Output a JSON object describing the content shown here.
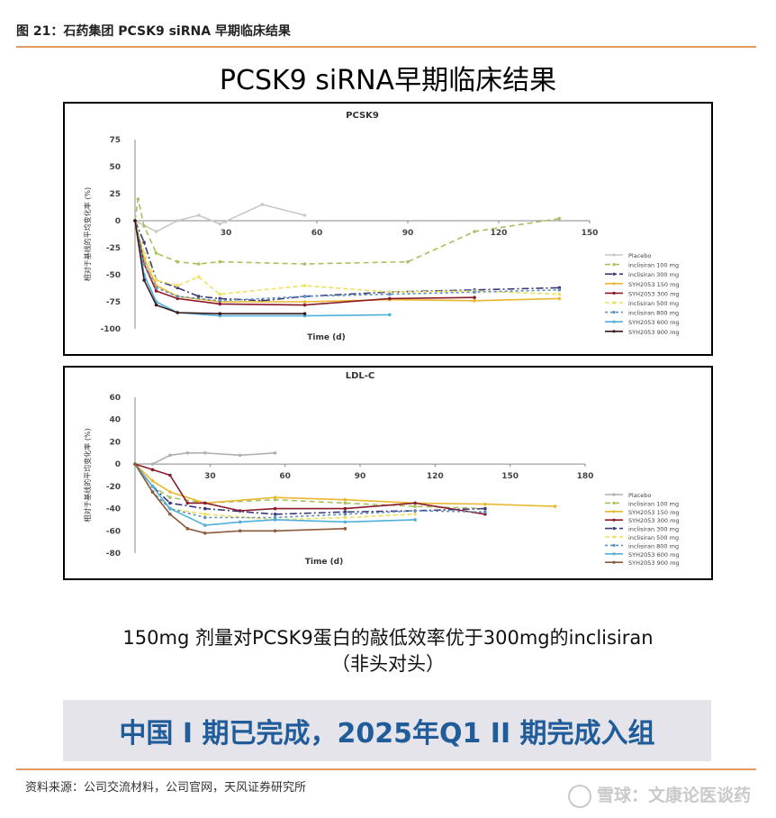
{
  "header": {
    "figure_label": "图 21：石药集团 PCSK9 siRNA 早期临床结果",
    "slide_title": "PCSK9 siRNA早期临床结果"
  },
  "chart_data": [
    {
      "type": "line",
      "title": "PCSK9",
      "xlabel": "Time (d)",
      "ylabel": "相对于基线的平均变化率 (%)",
      "xlim": [
        0,
        150
      ],
      "ylim": [
        -100,
        75
      ],
      "xticks": [
        0,
        30,
        60,
        90,
        120,
        150
      ],
      "yticks": [
        75,
        50,
        25,
        0,
        -25,
        -50,
        -75,
        -100
      ],
      "legend_position": "right",
      "series": [
        {
          "name": "Placebo",
          "color": "#c8c8c8",
          "dash": "",
          "x": [
            0,
            7,
            14,
            21,
            28,
            42,
            56
          ],
          "y": [
            0,
            -10,
            0,
            5,
            -3,
            15,
            5
          ]
        },
        {
          "name": "inclisiran 100 mg",
          "color": "#a8c060",
          "dash": "6,4",
          "x": [
            0,
            1,
            3,
            7,
            14,
            21,
            28,
            56,
            90,
            112,
            140
          ],
          "y": [
            0,
            20,
            -5,
            -30,
            -38,
            -40,
            -38,
            -40,
            -38,
            -10,
            2
          ]
        },
        {
          "name": "inclisiran 300 mg",
          "color": "#3a3a7a",
          "dash": "8,3,2,3",
          "x": [
            0,
            3,
            7,
            14,
            21,
            28,
            42,
            56,
            84,
            112,
            140
          ],
          "y": [
            0,
            -20,
            -55,
            -62,
            -70,
            -72,
            -74,
            -70,
            -66,
            -64,
            -62
          ]
        },
        {
          "name": "SYH2053 150 mg",
          "color": "#e8b830",
          "dash": "",
          "x": [
            0,
            3,
            7,
            14,
            28,
            56,
            84,
            112,
            140
          ],
          "y": [
            0,
            -35,
            -60,
            -70,
            -75,
            -75,
            -73,
            -74,
            -72
          ]
        },
        {
          "name": "SYH2053 300 mg",
          "color": "#8a1a2a",
          "dash": "",
          "x": [
            0,
            3,
            7,
            14,
            28,
            56,
            84,
            112
          ],
          "y": [
            0,
            -40,
            -65,
            -72,
            -77,
            -78,
            -72,
            -71
          ]
        },
        {
          "name": "inclisiran 500 mg",
          "color": "#f0e060",
          "dash": "5,3",
          "x": [
            0,
            3,
            7,
            14,
            21,
            28,
            56,
            84,
            112,
            140
          ],
          "y": [
            0,
            -30,
            -55,
            -60,
            -52,
            -68,
            -60,
            -66,
            -65,
            -68
          ]
        },
        {
          "name": "inclisiran 800 mg",
          "color": "#6090c0",
          "dash": "3,3",
          "x": [
            0,
            3,
            7,
            14,
            28,
            56,
            84,
            112,
            140
          ],
          "y": [
            0,
            -40,
            -62,
            -70,
            -74,
            -70,
            -68,
            -66,
            -64
          ]
        },
        {
          "name": "SYH2053 600 mg",
          "color": "#50b0d8",
          "dash": "",
          "x": [
            0,
            3,
            7,
            14,
            28,
            56,
            84
          ],
          "y": [
            0,
            -50,
            -75,
            -85,
            -88,
            -88,
            -87
          ]
        },
        {
          "name": "SYH2053 900 mg",
          "color": "#3a1a1a",
          "dash": "",
          "x": [
            0,
            3,
            7,
            14,
            28,
            56
          ],
          "y": [
            0,
            -55,
            -78,
            -85,
            -86,
            -86
          ]
        }
      ]
    },
    {
      "type": "line",
      "title": "LDL-C",
      "xlabel": "Time (d)",
      "ylabel": "相对于基线的平均变化率 (%)",
      "xlim": [
        0,
        180
      ],
      "ylim": [
        -80,
        60
      ],
      "xticks": [
        0,
        30,
        60,
        90,
        120,
        150,
        180
      ],
      "yticks": [
        60,
        40,
        20,
        0,
        -20,
        -40,
        -60,
        -80
      ],
      "legend_position": "right",
      "series": [
        {
          "name": "Placebo",
          "color": "#b0b0b0",
          "dash": "",
          "x": [
            0,
            7,
            14,
            21,
            28,
            42,
            56
          ],
          "y": [
            0,
            0,
            8,
            10,
            10,
            8,
            10
          ]
        },
        {
          "name": "inclisiran 100 mg",
          "color": "#a8c060",
          "dash": "6,4",
          "x": [
            0,
            7,
            14,
            28,
            56,
            84,
            112,
            140
          ],
          "y": [
            0,
            -20,
            -30,
            -35,
            -32,
            -35,
            -38,
            -40
          ]
        },
        {
          "name": "SYH2053 150 mg",
          "color": "#e8b830",
          "dash": "",
          "x": [
            0,
            7,
            14,
            28,
            56,
            84,
            112,
            140,
            168
          ],
          "y": [
            0,
            -15,
            -25,
            -35,
            -30,
            -32,
            -35,
            -36,
            -38
          ]
        },
        {
          "name": "SYH2053 300 mg",
          "color": "#8a1a2a",
          "dash": "",
          "x": [
            0,
            7,
            14,
            21,
            28,
            42,
            56,
            84,
            112,
            140
          ],
          "y": [
            0,
            -5,
            -10,
            -35,
            -35,
            -42,
            -40,
            -40,
            -35,
            -45
          ]
        },
        {
          "name": "inclisiran 300 mg",
          "color": "#3a3a7a",
          "dash": "8,3,2,3",
          "x": [
            0,
            7,
            14,
            28,
            56,
            84,
            112,
            140
          ],
          "y": [
            0,
            -20,
            -35,
            -40,
            -45,
            -43,
            -42,
            -40
          ]
        },
        {
          "name": "inclisiran 500 mg",
          "color": "#f0e060",
          "dash": "5,3",
          "x": [
            0,
            7,
            14,
            28,
            56,
            84,
            112
          ],
          "y": [
            0,
            -25,
            -40,
            -45,
            -50,
            -48,
            -45
          ]
        },
        {
          "name": "inclisiran 800 mg",
          "color": "#6090c0",
          "dash": "3,3",
          "x": [
            0,
            7,
            14,
            28,
            56,
            84,
            112,
            140
          ],
          "y": [
            0,
            -25,
            -40,
            -48,
            -48,
            -45,
            -42,
            -43
          ]
        },
        {
          "name": "SYH2053 600 mg",
          "color": "#50b0d8",
          "dash": "",
          "x": [
            0,
            7,
            14,
            28,
            42,
            56,
            84,
            112
          ],
          "y": [
            0,
            -20,
            -40,
            -55,
            -52,
            -50,
            -52,
            -50
          ]
        },
        {
          "name": "SYH2053 900 mg",
          "color": "#8a5a3a",
          "dash": "",
          "x": [
            0,
            7,
            14,
            21,
            28,
            42,
            56,
            84
          ],
          "y": [
            0,
            -25,
            -45,
            -58,
            -62,
            -60,
            -60,
            -58
          ]
        }
      ]
    }
  ],
  "caption": {
    "line1": "150mg 剂量对PCSK9蛋白的敲低效率优于300mg的inclisiran",
    "line2": "（非头对头）"
  },
  "banner": {
    "text": "中国 I 期已完成，2025年Q1  II 期完成入组"
  },
  "footer": {
    "source": "资料来源：公司交流材料，公司官网，天风证券研究所",
    "watermark": "雪球：文康论医谈药"
  }
}
